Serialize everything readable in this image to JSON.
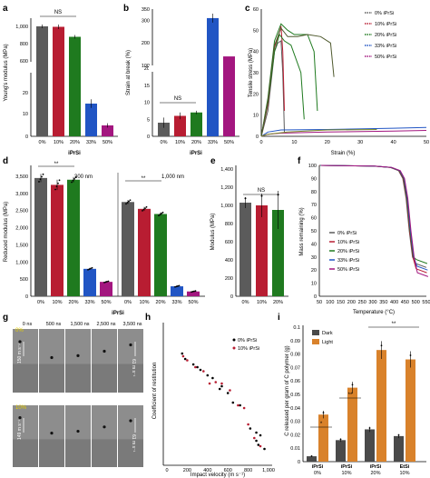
{
  "colors": {
    "p0": "#5b5b5b",
    "p10": "#b81d32",
    "p20": "#1f7a1f",
    "p33": "#2155c4",
    "p50": "#a3167f",
    "dark": "#4a4a4a",
    "light": "#d9822b"
  },
  "panels": {
    "a": "a",
    "b": "b",
    "c": "c",
    "d": "d",
    "e": "e",
    "f": "f",
    "g": "g",
    "h": "h",
    "i": "i"
  },
  "chart_data": [
    {
      "panel": "a",
      "type": "bar",
      "categories": [
        "0%",
        "10%",
        "20%",
        "33%",
        "50%"
      ],
      "values": [
        990,
        985,
        875,
        15,
        5
      ],
      "errors": [
        20,
        25,
        20,
        2,
        1
      ],
      "ylabel": "Young's modulus (MPa)",
      "xlabel": "iPrSi",
      "annotation": "NS",
      "y_ticks_upper": [
        "1,000",
        "800",
        "600"
      ],
      "y_ticks_lower": [
        "20",
        "10",
        "0"
      ]
    },
    {
      "panel": "b",
      "type": "bar",
      "categories": [
        "0%",
        "10%",
        "20%",
        "33%",
        "50%"
      ],
      "values": [
        4,
        6,
        7,
        310,
        140
      ],
      "errors": [
        1.5,
        1,
        0.5,
        20,
        0
      ],
      "ylabel": "Strain at break (%)",
      "xlabel": "iPrSi",
      "annotation": "NS",
      "y_ticks": [
        "0",
        "5",
        "10",
        "15",
        "20",
        "100",
        "200",
        "300",
        "350"
      ]
    },
    {
      "panel": "c",
      "type": "line",
      "xlabel": "Strain (%)",
      "ylabel": "Tensile stress (MPa)",
      "x_ticks": [
        "0",
        "10",
        "20",
        "30",
        "40",
        "50"
      ],
      "y_ticks": [
        "0",
        "10",
        "20",
        "30",
        "40",
        "50",
        "60"
      ],
      "legend": [
        "0% iPrSi",
        "10% iPrSi",
        "20% iPrSi",
        "33% iPrSi",
        "50% iPrSi"
      ]
    },
    {
      "panel": "d",
      "type": "bar",
      "ylabel": "Reduced modulus (MPa)",
      "xlabel": "iPrSi",
      "groups": [
        {
          "label": "300 nm",
          "values": [
            3450,
            3250,
            3400,
            800,
            420
          ],
          "errors": [
            120,
            150,
            80,
            30,
            20
          ]
        },
        {
          "label": "1,000 nm",
          "values": [
            2750,
            2550,
            2400,
            290,
            140
          ],
          "errors": [
            60,
            60,
            50,
            20,
            15
          ]
        }
      ],
      "categories": [
        "0%",
        "10%",
        "20%",
        "33%",
        "50%"
      ],
      "annotation": "**",
      "y_ticks": [
        "0",
        "500",
        "1,000",
        "1,500",
        "2,000",
        "2,500",
        "3,000",
        "3,500"
      ]
    },
    {
      "panel": "e",
      "type": "bar",
      "categories": [
        "0%",
        "10%",
        "20%"
      ],
      "values": [
        1030,
        1000,
        950
      ],
      "errors": [
        60,
        130,
        210
      ],
      "ylabel": "Modulus (MPa)",
      "annotation": "NS",
      "y_ticks": [
        "0",
        "200",
        "400",
        "600",
        "800",
        "1,000",
        "1,200",
        "1,400"
      ]
    },
    {
      "panel": "f",
      "type": "line",
      "xlabel": "Temperature (°C)",
      "ylabel": "Mass remaining (%)",
      "x_ticks": [
        "50",
        "100",
        "150",
        "200",
        "250",
        "300",
        "350",
        "400",
        "450",
        "500",
        "550"
      ],
      "y_ticks": [
        "0",
        "10",
        "20",
        "30",
        "40",
        "50",
        "60",
        "70",
        "80",
        "90",
        "100"
      ],
      "legend": [
        "0% iPrSi",
        "10% iPrSi",
        "20% iPrSi",
        "33% iPrSi",
        "50% iPrSi"
      ]
    },
    {
      "panel": "h",
      "type": "scatter",
      "xlabel": "Impact velocity (m s⁻¹)",
      "ylabel": "Coefficient of restitution",
      "x_ticks": [
        "0",
        "200",
        "400",
        "600",
        "800",
        "1,000"
      ],
      "legend": [
        "0% iPrSi",
        "10% iPrSi"
      ]
    },
    {
      "panel": "i",
      "type": "bar",
      "categories": [
        "iPrSi 0%",
        "iPrSi 10%",
        "iPrSi 20%",
        "EtSi 10%"
      ],
      "series": [
        {
          "name": "Dark",
          "values": [
            0.004,
            0.016,
            0.024,
            0.019
          ]
        },
        {
          "name": "Light",
          "values": [
            0.035,
            0.055,
            0.083,
            0.076
          ]
        }
      ],
      "ylabel": "C released per gram of C polymer (g)",
      "y_ticks": [
        "0",
        "0.01",
        "0.02",
        "0.03",
        "0.04",
        "0.05",
        "0.06",
        "0.07",
        "0.08",
        "0.09",
        "0.1"
      ],
      "x_bottom": [
        [
          "iPrSi",
          "0%"
        ],
        [
          "iPrSi",
          "10%"
        ],
        [
          "iPrSi",
          "20%"
        ],
        [
          "EtSi",
          "10%"
        ]
      ],
      "annotations": [
        "*",
        "**",
        "**"
      ]
    }
  ],
  "panel_g": {
    "times": [
      "0 ns",
      "500 ns",
      "1,500 ns",
      "2,500 ns",
      "3,500 ns"
    ],
    "row1": {
      "label": "0%",
      "v_in": "150 m s⁻¹",
      "v_out": "61 m s⁻¹"
    },
    "row2": {
      "label": "10%",
      "v_in": "149 m s⁻¹",
      "v_out": "61 m s⁻¹"
    },
    "scale": "50 μm"
  }
}
